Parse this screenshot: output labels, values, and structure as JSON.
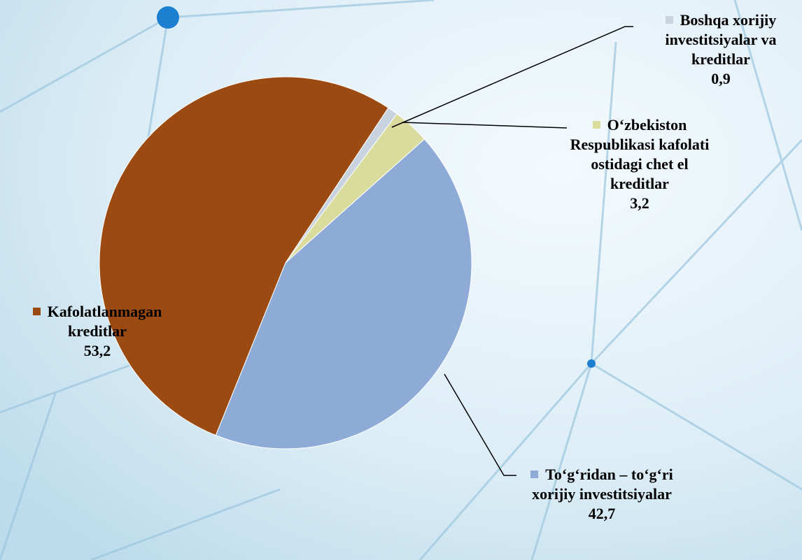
{
  "chart_data": {
    "type": "pie",
    "categories": [
      "Kafolatlanmagan kreditlar",
      "Boshqa  xorijiy investitsiyalar va kreditlar",
      "O‘zbekiston Respublikasi kafolati ostidagi chet el kreditlar",
      "To‘g‘ridan – to‘g‘ri xorijiy investitsiyalar"
    ],
    "values": [
      53.2,
      0.9,
      3.2,
      42.7
    ],
    "value_labels": [
      "53,2",
      "0,9",
      "3,2",
      "42,7"
    ],
    "colors": [
      "#9b4b12",
      "#c9d3df",
      "#d9dc9c",
      "#8eaad6"
    ]
  }
}
